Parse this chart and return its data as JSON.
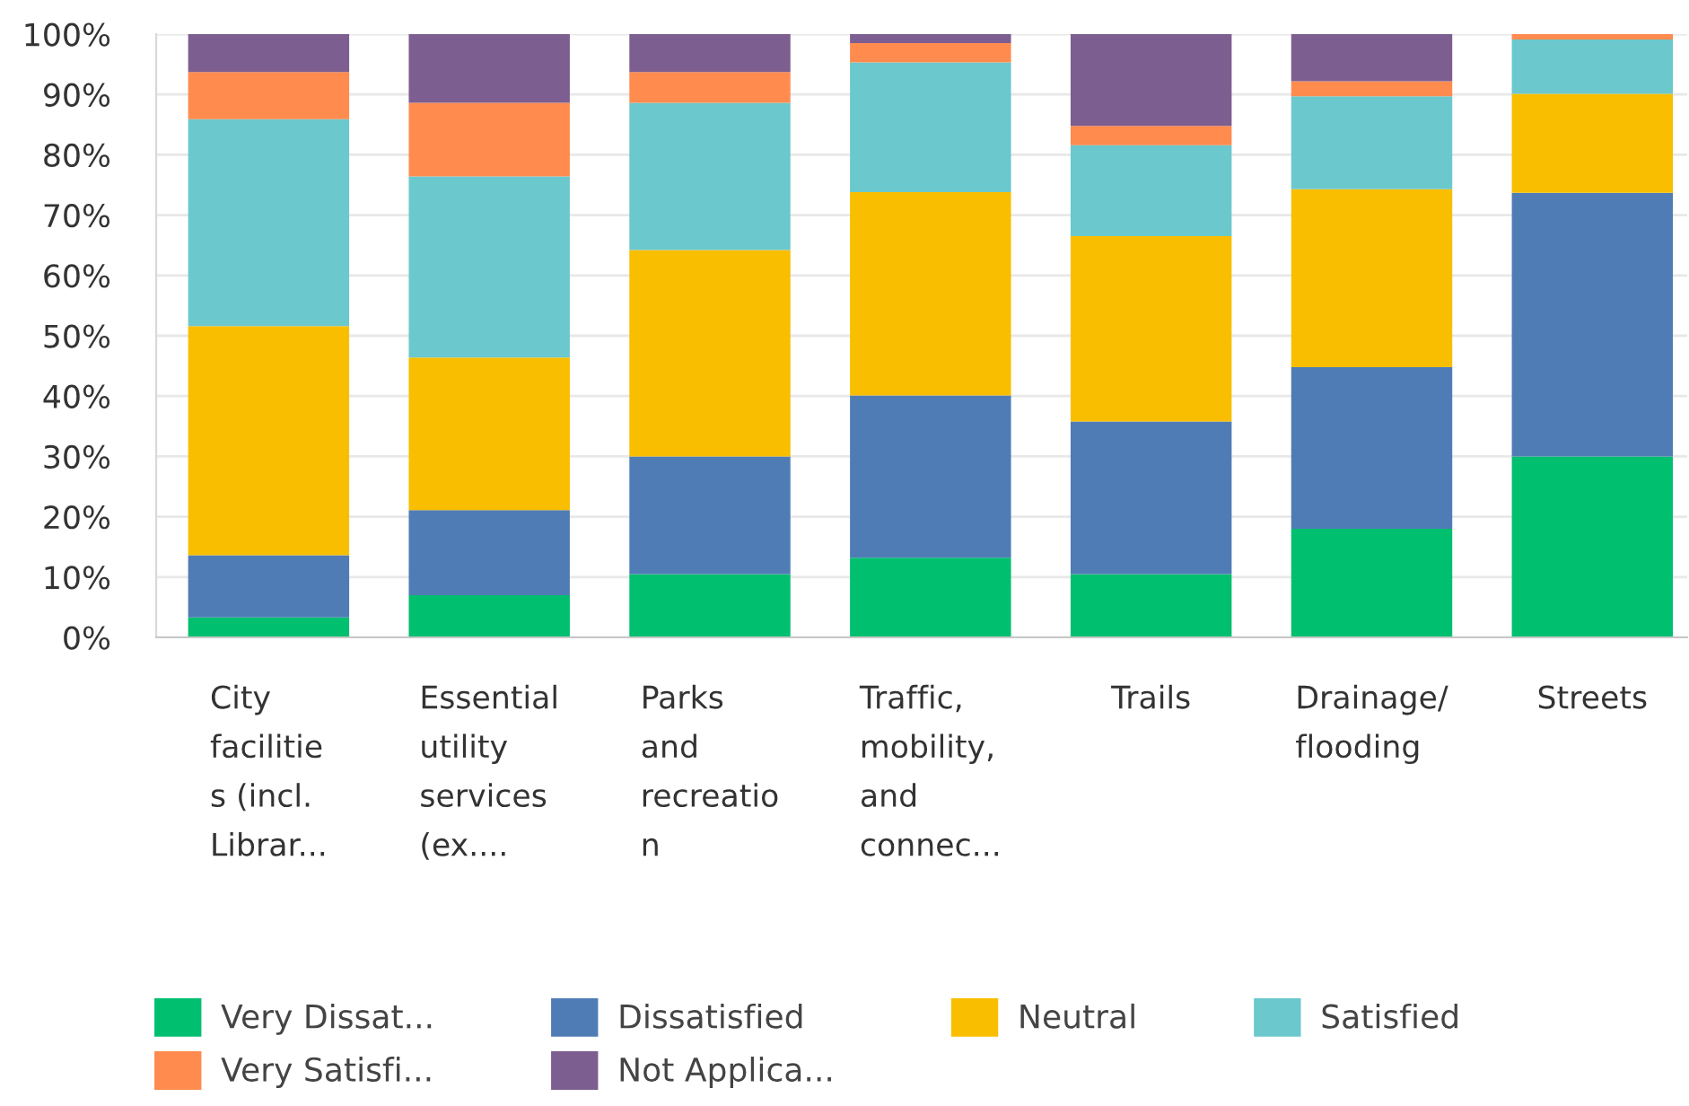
{
  "chart_data": {
    "type": "bar",
    "stacked": true,
    "categories": [
      "City\nfacilitie\ns (incl.\nLibrar...",
      "Essential\nutility\nservices\n(ex....",
      "Parks\nand\nrecreatio\nn",
      "Traffic,\nmobility,\nand\nconnec...",
      "Trails",
      "Drainage/\nflooding",
      "Streets"
    ],
    "series": [
      {
        "name": "Very Dissat...",
        "color": "#00bf6f",
        "values": [
          3.3,
          7.0,
          10.5,
          13.2,
          10.5,
          18.0,
          30.0
        ]
      },
      {
        "name": "Dissatisfied",
        "color": "#507cb6",
        "values": [
          10.3,
          14.1,
          19.5,
          26.9,
          25.3,
          26.8,
          43.7
        ]
      },
      {
        "name": "Neutral",
        "color": "#f9be00",
        "values": [
          38.0,
          25.3,
          34.2,
          33.7,
          30.7,
          29.5,
          16.4
        ]
      },
      {
        "name": "Satisfied",
        "color": "#6bc8cd",
        "values": [
          34.3,
          30.0,
          24.4,
          21.5,
          15.1,
          15.4,
          9.0
        ]
      },
      {
        "name": "Very Satisfi...",
        "color": "#ff8b4f",
        "values": [
          7.8,
          12.2,
          5.1,
          3.2,
          3.2,
          2.5,
          0.9
        ]
      },
      {
        "name": "Not Applica...",
        "color": "#7d5e90",
        "values": [
          6.3,
          11.4,
          6.3,
          1.5,
          15.2,
          7.8,
          0
        ]
      }
    ],
    "ylim": [
      0,
      100
    ],
    "yticks": [
      {
        "value": 0,
        "label": "0%"
      },
      {
        "value": 10,
        "label": "10%"
      },
      {
        "value": 20,
        "label": "20%"
      },
      {
        "value": 30,
        "label": "30%"
      },
      {
        "value": 40,
        "label": "40%"
      },
      {
        "value": 50,
        "label": "50%"
      },
      {
        "value": 60,
        "label": "60%"
      },
      {
        "value": 70,
        "label": "70%"
      },
      {
        "value": 80,
        "label": "80%"
      },
      {
        "value": 90,
        "label": "90%"
      },
      {
        "value": 100,
        "label": "100%"
      }
    ],
    "grid": "y",
    "legend": "bottom"
  }
}
